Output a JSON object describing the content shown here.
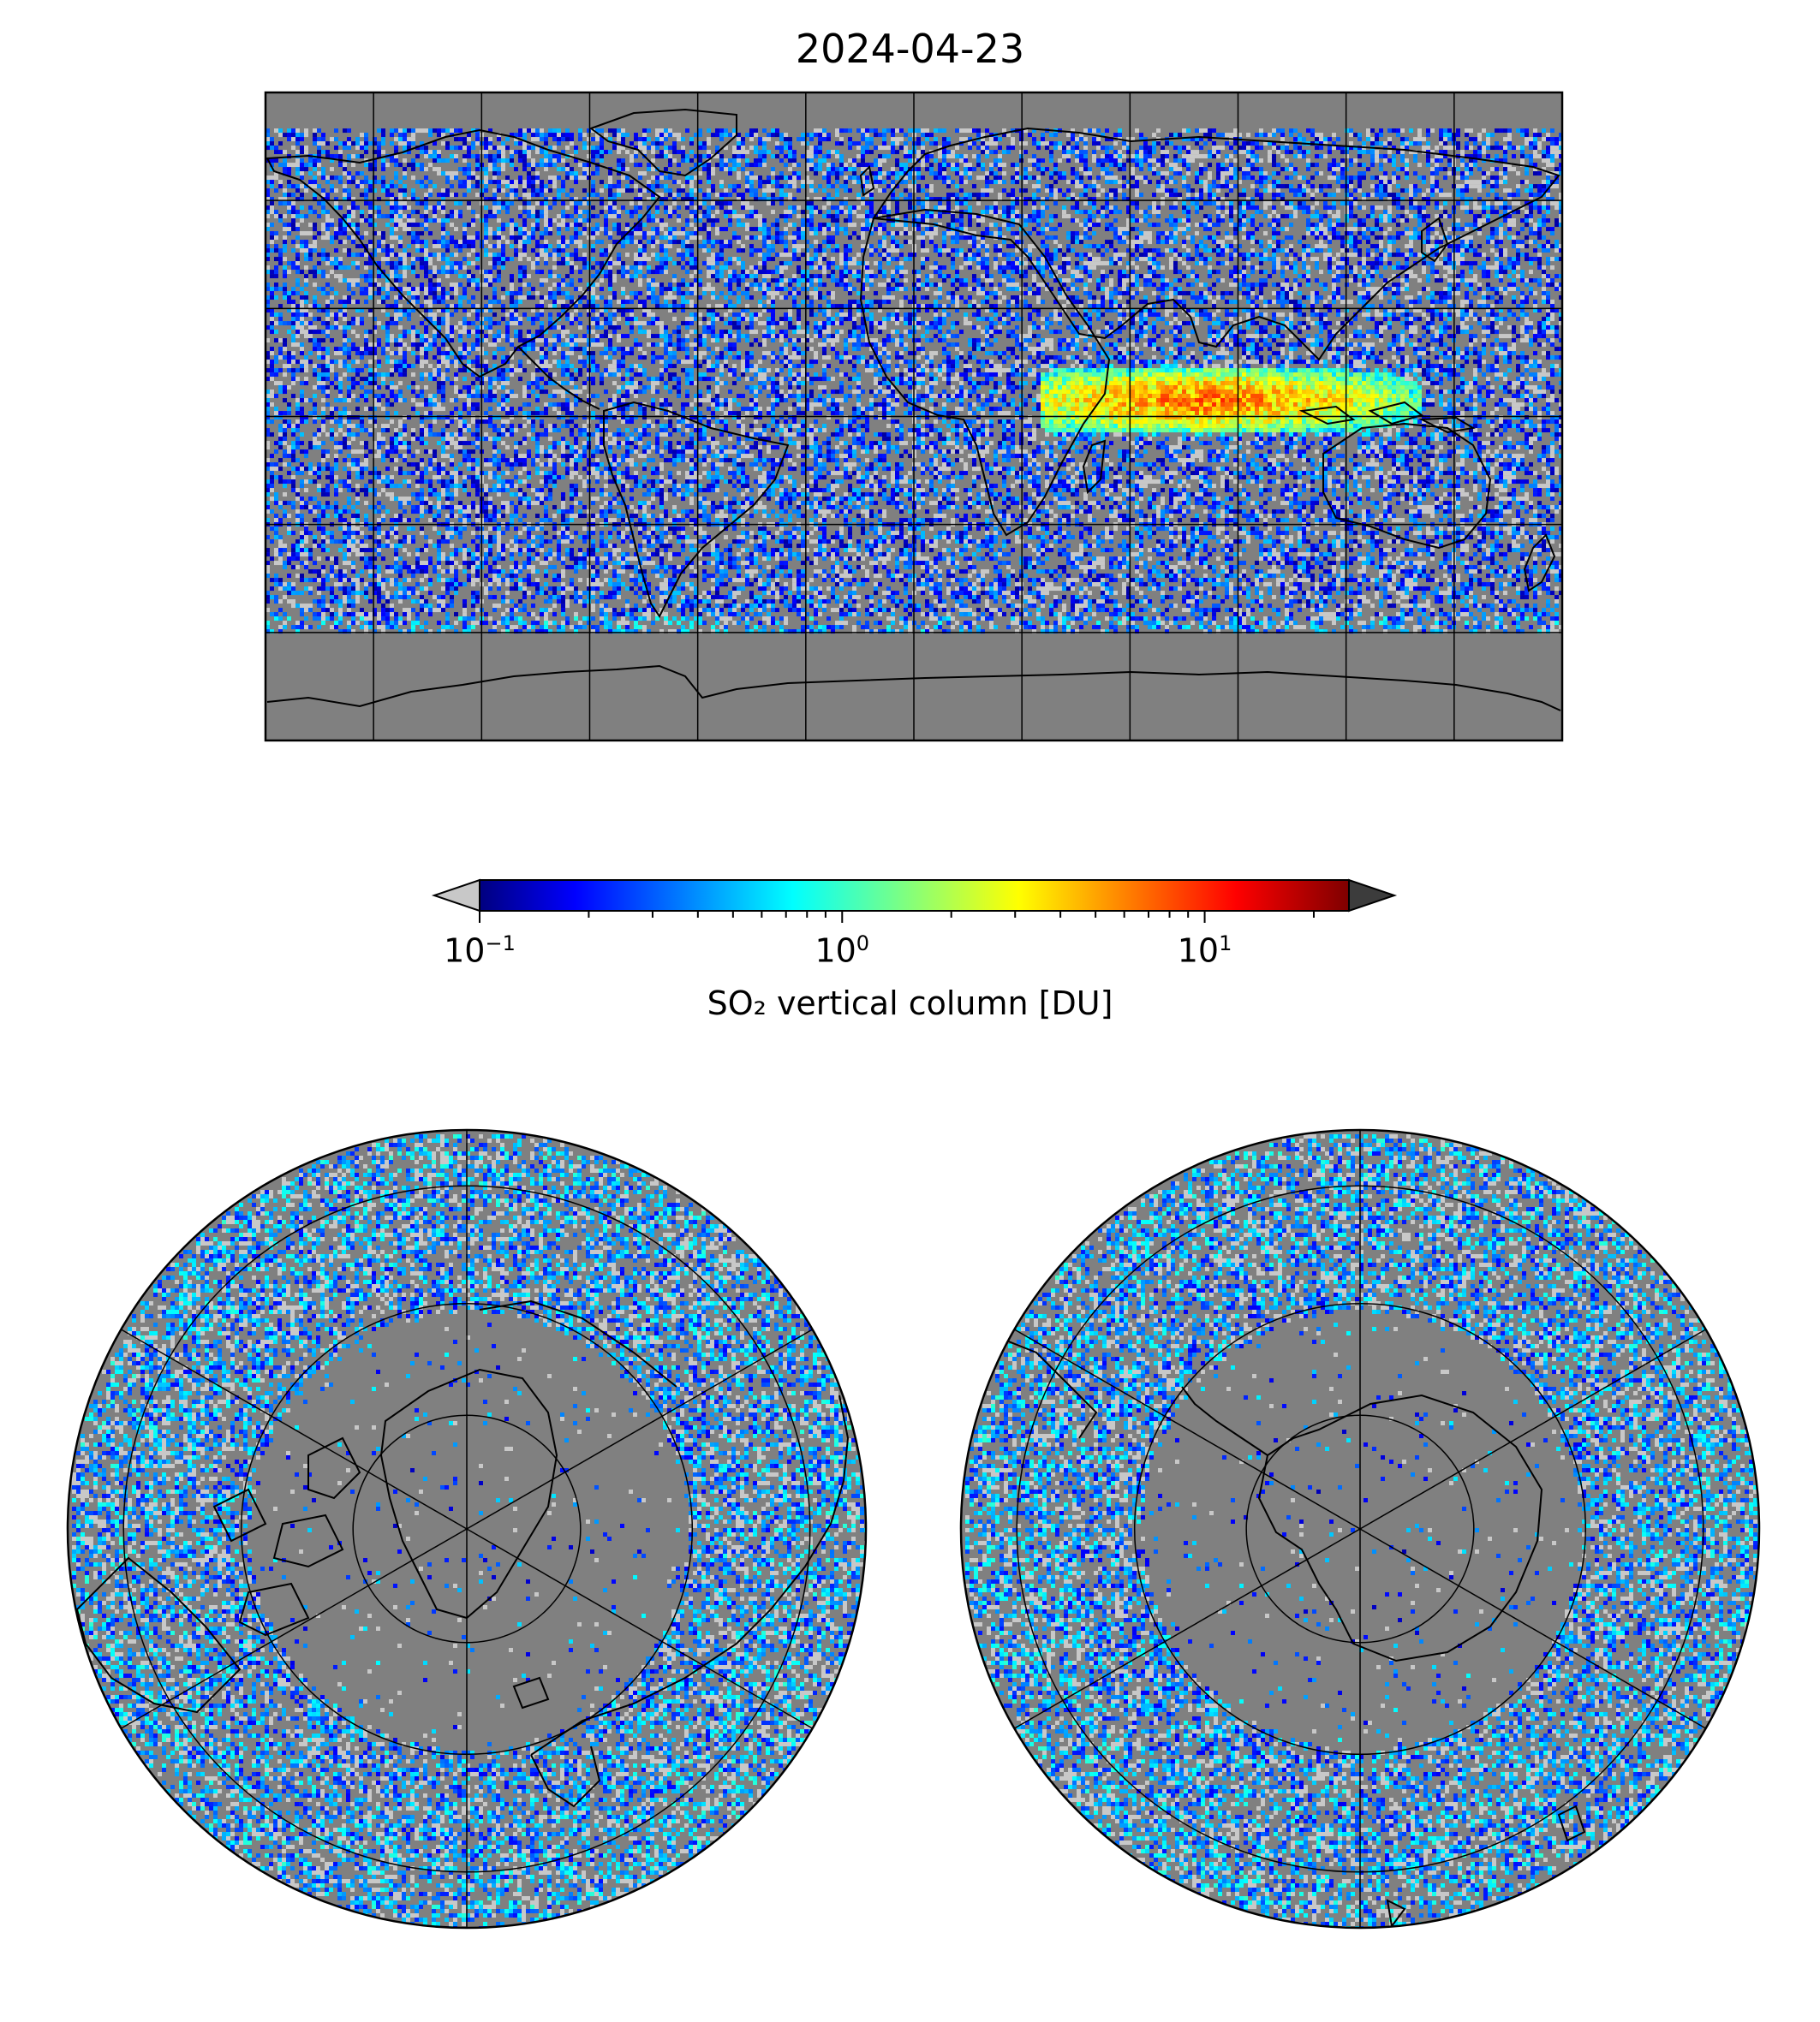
{
  "figure": {
    "title": "2024-04-23"
  },
  "colorbar": {
    "label": "SO₂ vertical column [DU]",
    "scale": "log",
    "range": [
      0.1,
      25
    ],
    "colormap": "jet",
    "extend": "both",
    "under_color": "#c8c8c8",
    "over_color": "#3c3c3c",
    "ticks": [
      {
        "base": "10",
        "exp": "−1",
        "value": 0.1
      },
      {
        "base": "10",
        "exp": "0",
        "value": 1
      },
      {
        "base": "10",
        "exp": "1",
        "value": 10
      }
    ]
  },
  "maps": {
    "ocean_land_color": "#808080",
    "coastline_color": "#000000",
    "global": {
      "projection": "equirectangular",
      "lon_range": [
        -180,
        180
      ],
      "lat_range": [
        -90,
        90
      ],
      "grid_lon_step": 30,
      "grid_lat_step": 30
    },
    "north_polar": {
      "projection": "north-polar-stereographic"
    },
    "south_polar": {
      "projection": "south-polar-stereographic"
    }
  },
  "chart_data": {
    "type": "heatmap",
    "title": "2024-04-23",
    "colorbar_label": "SO₂ vertical column [DU]",
    "value_range": [
      0.1,
      25
    ],
    "plume": {
      "region": "Indian Ocean to Indonesia",
      "lon_range": [
        35,
        140
      ],
      "lat_range": [
        -5,
        15
      ],
      "peak_value": 20
    }
  }
}
